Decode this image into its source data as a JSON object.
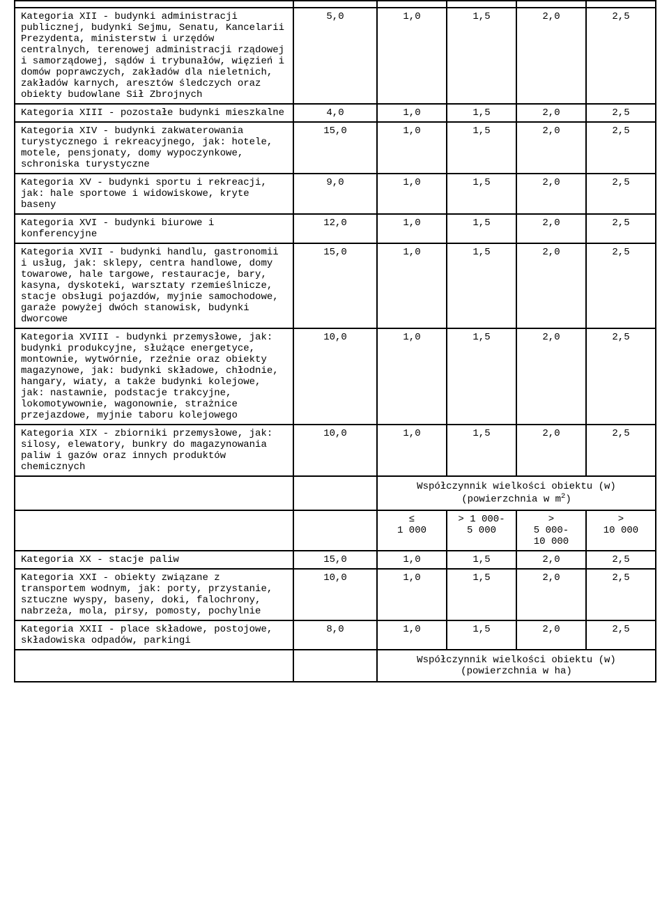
{
  "columns": {
    "c1_width": 400,
    "c2_width": 120,
    "c3_width": 100,
    "c4_width": 100,
    "c5_width": 100,
    "c6_width": 100
  },
  "font_family": "Courier New",
  "font_size_pt": 11,
  "border_color": "#000000",
  "background_color": "#ffffff",
  "empty_row": {
    "c1": "",
    "c2": "",
    "c3": "",
    "c4": "",
    "c5": "",
    "c6": ""
  },
  "rows_a": [
    {
      "label": "Kategoria XII - budynki administracji publicznej, budynki Sejmu, Senatu, Kancelarii Prezydenta, ministerstw i urzędów centralnych, terenowej administracji rządowej i samorządowej, sądów i trybunałów, więzień i domów poprawczych, zakładów dla nieletnich, zakładów karnych, aresztów śledczych oraz obiekty budowlane Sił Zbrojnych",
      "v1": "5,0",
      "v2": "1,0",
      "v3": "1,5",
      "v4": "2,0",
      "v5": "2,5"
    },
    {
      "label": "Kategoria XIII - pozostałe budynki mieszkalne",
      "v1": "4,0",
      "v2": "1,0",
      "v3": "1,5",
      "v4": "2,0",
      "v5": "2,5"
    },
    {
      "label": "Kategoria XIV - budynki zakwaterowania turystycznego i rekreacyjnego, jak: hotele, motele, pensjonaty, domy wypoczynkowe, schroniska turystyczne",
      "v1": "15,0",
      "v2": "1,0",
      "v3": "1,5",
      "v4": "2,0",
      "v5": "2,5"
    },
    {
      "label": "Kategoria XV - budynki sportu i rekreacji, jak: hale sportowe i widowiskowe, kryte baseny",
      "v1": "9,0",
      "v2": "1,0",
      "v3": "1,5",
      "v4": "2,0",
      "v5": "2,5"
    },
    {
      "label": "Kategoria XVI - budynki biurowe i konferencyjne",
      "v1": "12,0",
      "v2": "1,0",
      "v3": "1,5",
      "v4": "2,0",
      "v5": "2,5"
    },
    {
      "label": "Kategoria XVII - budynki handlu, gastronomii i usług, jak: sklepy, centra handlowe, domy towarowe, hale targowe, restauracje, bary, kasyna, dyskoteki, warsztaty rzemieślnicze, stacje obsługi pojazdów, myjnie samochodowe, garaże powyżej dwóch stanowisk, budynki dworcowe",
      "v1": "15,0",
      "v2": "1,0",
      "v3": "1,5",
      "v4": "2,0",
      "v5": "2,5"
    },
    {
      "label": "Kategoria XVIII - budynki przemysłowe, jak: budynki produkcyjne, służące energetyce, montownie, wytwórnie, rzeźnie oraz obiekty magazynowe, jak: budynki składowe, chłodnie, hangary, wiaty, a także budynki kolejowe, jak: nastawnie, podstacje trakcyjne, lokomotywownie, wagonownie, strażnice przejazdowe, myjnie taboru kolejowego",
      "v1": "10,0",
      "v2": "1,0",
      "v3": "1,5",
      "v4": "2,0",
      "v5": "2,5"
    },
    {
      "label": "Kategoria XIX - zbiorniki przemysłowe, jak: silosy, elewatory, bunkry do magazynowania paliw i gazów oraz innych produktów chemicznych",
      "v1": "10,0",
      "v2": "1,0",
      "v3": "1,5",
      "v4": "2,0",
      "v5": "2,5"
    }
  ],
  "header_m2": {
    "title_line1": "Współczynnik wielkości obiektu (w)",
    "title_line2_pre": "(powierzchnia w m",
    "title_line2_sup": "2",
    "title_line2_post": ")",
    "h1_l1": "≤",
    "h1_l2": "1 000",
    "h2_l1": "> 1 000-",
    "h2_l2": "5 000",
    "h3_l1": ">",
    "h3_l2": "5 000-",
    "h3_l3": "10 000",
    "h4_l1": ">",
    "h4_l2": "10 000"
  },
  "rows_b": [
    {
      "label": "Kategoria XX - stacje paliw",
      "v1": "15,0",
      "v2": "1,0",
      "v3": "1,5",
      "v4": "2,0",
      "v5": "2,5"
    },
    {
      "label": "Kategoria XXI - obiekty związane z transportem wodnym, jak: porty, przystanie, sztuczne wyspy, baseny, doki, falochrony, nabrzeża, mola, pirsy, pomosty, pochylnie",
      "v1": "10,0",
      "v2": "1,0",
      "v3": "1,5",
      "v4": "2,0",
      "v5": "2,5"
    },
    {
      "label": "Kategoria XXII - place składowe, postojowe, składowiska odpadów, parkingi",
      "v1": "8,0",
      "v2": "1,0",
      "v3": "1,5",
      "v4": "2,0",
      "v5": "2,5"
    }
  ],
  "header_ha": {
    "title_line1": "Współczynnik wielkości obiektu (w)",
    "title_line2": "(powierzchnia w ha)"
  }
}
